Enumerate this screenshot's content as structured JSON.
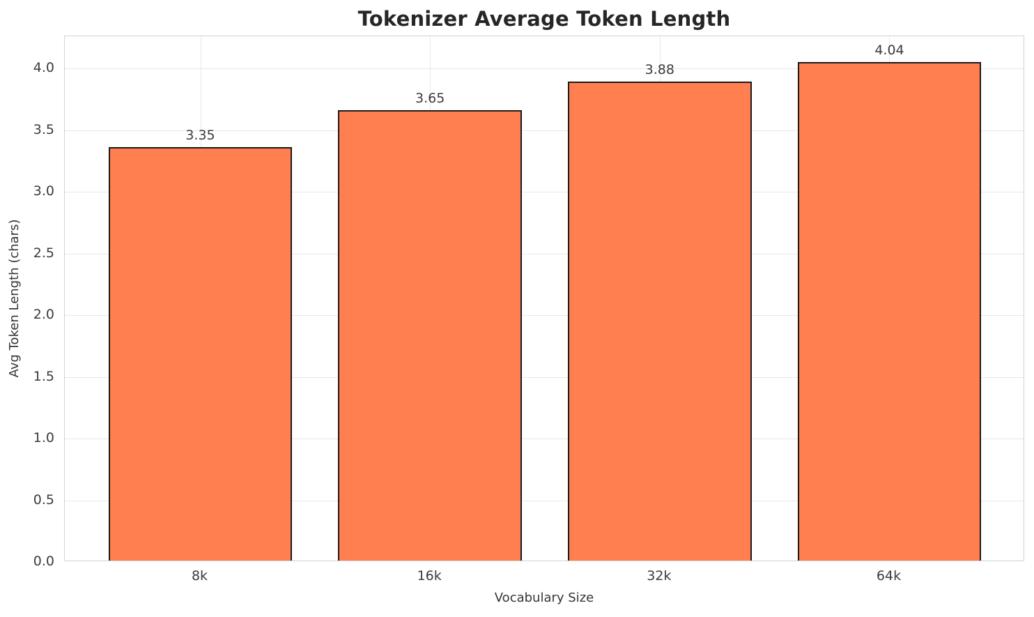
{
  "chart_data": {
    "type": "bar",
    "title": "Tokenizer Average Token Length",
    "xlabel": "Vocabulary Size",
    "ylabel": "Avg Token Length (chars)",
    "categories": [
      "8k",
      "16k",
      "32k",
      "64k"
    ],
    "values": [
      3.35,
      3.65,
      3.88,
      4.04
    ],
    "value_labels": [
      "3.35",
      "3.65",
      "3.88",
      "4.04"
    ],
    "ylim": [
      0,
      4.26
    ],
    "yticks": [
      0,
      0.5,
      1,
      1.5,
      2,
      2.5,
      3,
      3.5,
      4
    ],
    "grid": true,
    "legend": "none",
    "colors": {
      "bar_fill": "#ff7f50",
      "bar_edge": "#1a1a1a",
      "grid": "#e7e7e7",
      "spine": "#d2d2d2",
      "title_text": "#262626",
      "tick_text": "#3b3b3b"
    }
  }
}
